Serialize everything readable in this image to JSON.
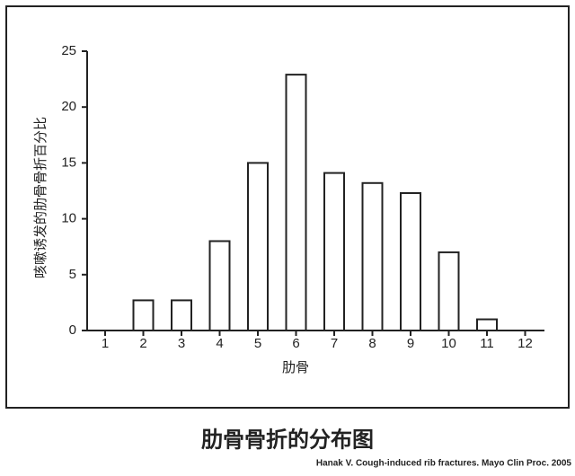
{
  "chart_data": {
    "type": "bar",
    "title": "肋骨骨折的分布图",
    "source": "Hanak V. Cough-induced rib fractures. Mayo Clin Proc. 2005",
    "x_label": "肋骨",
    "y_label": "咳嗽诱发的肋骨骨折百分比",
    "categories": [
      "1",
      "2",
      "3",
      "4",
      "5",
      "6",
      "7",
      "8",
      "9",
      "10",
      "11",
      "12"
    ],
    "values": [
      0,
      2.7,
      2.7,
      8,
      15,
      22.9,
      14.1,
      13.2,
      12.3,
      7,
      1,
      0
    ],
    "color": "#ffffff",
    "ylim": [
      0,
      25
    ],
    "yticks": [
      0,
      5,
      10,
      15,
      20,
      25
    ],
    "grid": false
  }
}
